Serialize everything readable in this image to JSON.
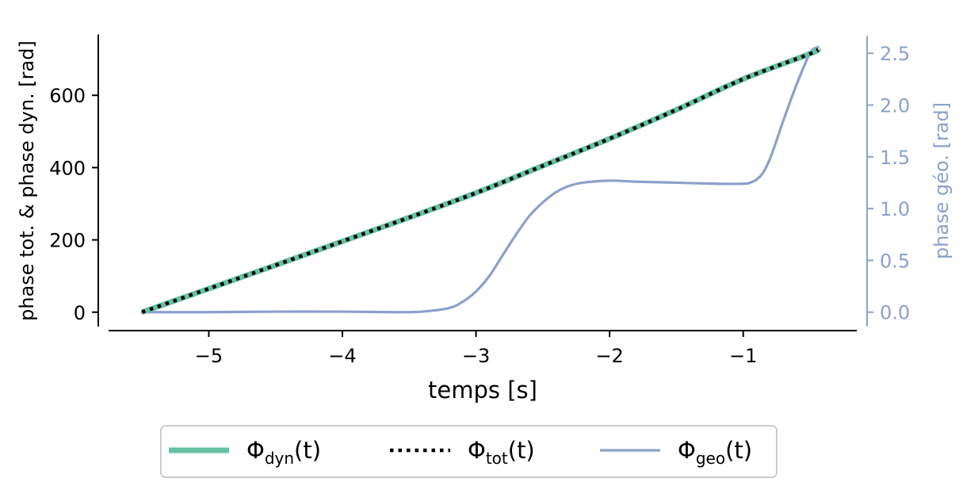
{
  "chart_data": {
    "type": "line",
    "xlabel": "temps [s]",
    "ylabel_left": "phase tot. & phase dyn. [rad]",
    "ylabel_right": "phase géo. [rad]",
    "xlim": [
      -5.75,
      -0.15
    ],
    "ylim_left": [
      -40,
      765
    ],
    "ylim_right": [
      -0.14,
      2.67
    ],
    "x_ticks": [
      -5,
      -4,
      -3,
      -2,
      -1
    ],
    "x_tick_labels": [
      "−5",
      "−4",
      "−3",
      "−2",
      "−1"
    ],
    "y_left_ticks": [
      0,
      200,
      400,
      600
    ],
    "y_left_tick_labels": [
      "0",
      "200",
      "400",
      "600"
    ],
    "y_right_ticks": [
      0.0,
      0.5,
      1.0,
      1.5,
      2.0,
      2.5
    ],
    "y_right_tick_labels": [
      "0.0",
      "0.5",
      "1.0",
      "1.5",
      "2.0",
      "2.5"
    ],
    "colors": {
      "dyn": "#66c2a5",
      "tot": "#000000",
      "geo": "#8da0cb",
      "right_axis": "#8da0cb"
    },
    "series": [
      {
        "key": "dyn",
        "axis": "left",
        "style": "solid-thick",
        "x": [
          -5.5,
          -5.0,
          -4.5,
          -4.0,
          -3.5,
          -3.0,
          -2.5,
          -2.0,
          -1.5,
          -1.0,
          -0.5,
          -0.44
        ],
        "y": [
          0,
          65,
          130,
          196,
          262,
          330,
          405,
          480,
          560,
          645,
          715,
          727
        ]
      },
      {
        "key": "tot",
        "axis": "left",
        "style": "dotted",
        "x": [
          -5.5,
          -5.0,
          -4.5,
          -4.0,
          -3.5,
          -3.0,
          -2.5,
          -2.0,
          -1.5,
          -1.0,
          -0.5,
          -0.44
        ],
        "y": [
          0,
          65,
          130,
          196,
          262,
          330,
          405,
          480,
          560,
          645,
          715,
          727
        ]
      },
      {
        "key": "geo",
        "axis": "right",
        "style": "solid",
        "x": [
          -5.5,
          -5.0,
          -4.5,
          -4.0,
          -3.6,
          -3.4,
          -3.2,
          -3.1,
          -3.0,
          -2.9,
          -2.8,
          -2.7,
          -2.6,
          -2.5,
          -2.4,
          -2.3,
          -2.2,
          -2.0,
          -1.8,
          -1.5,
          -1.2,
          -1.0,
          -0.95,
          -0.9,
          -0.85,
          -0.8,
          -0.75,
          -0.7,
          -0.6,
          -0.5,
          -0.44
        ],
        "y": [
          0.0,
          0.0,
          0.005,
          0.005,
          0.0,
          0.005,
          0.04,
          0.1,
          0.2,
          0.35,
          0.55,
          0.75,
          0.93,
          1.06,
          1.16,
          1.22,
          1.25,
          1.27,
          1.26,
          1.25,
          1.24,
          1.24,
          1.25,
          1.28,
          1.35,
          1.48,
          1.66,
          1.85,
          2.2,
          2.5,
          2.56
        ]
      }
    ],
    "legend": {
      "placement": "bottom-center",
      "entries": [
        {
          "key": "dyn",
          "base": "Φ",
          "sub": "dyn",
          "arg": "(t)"
        },
        {
          "key": "tot",
          "base": "Φ",
          "sub": "tot",
          "arg": "(t)"
        },
        {
          "key": "geo",
          "base": "Φ",
          "sub": "geo",
          "arg": "(t)"
        }
      ]
    },
    "grid": false
  }
}
